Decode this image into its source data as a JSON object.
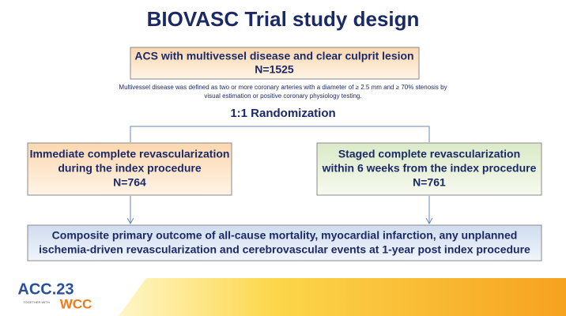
{
  "title": "BIOVASC Trial study design",
  "top_box": {
    "lines": [
      "ACS with multivessel disease and clear culprit lesion",
      "N=1525"
    ]
  },
  "note": {
    "lines": [
      "Multivessel disease was defined as two or more coronary arteries with a diameter of ≥ 2.5 mm and ≥ 70% stenosis by",
      "visual estimation or positive coronary physiology testing."
    ]
  },
  "randomization": "1:1 Randomization",
  "arms": [
    {
      "lines": [
        "Immediate complete revascularization",
        "during the index procedure",
        "N=764"
      ]
    },
    {
      "lines": [
        "Staged complete revascularization",
        "within 6 weeks from the index procedure",
        "N=761"
      ]
    }
  ],
  "outcome": {
    "lines": [
      "Composite primary outcome of all-cause mortality, myocardial infarction, any unplanned",
      "ischemia-driven revascularization and cerebrovascular events at 1-year post index procedure"
    ]
  },
  "logo": {
    "acc": "ACC.23",
    "together": "TOGETHER WITH",
    "wcc": "WCC"
  }
}
